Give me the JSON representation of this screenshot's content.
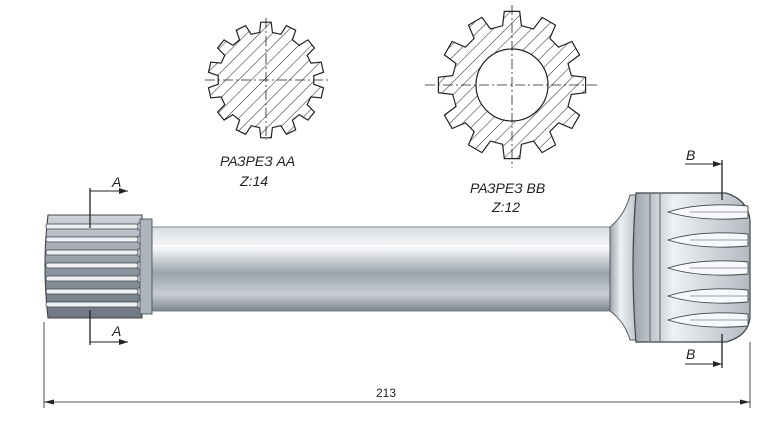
{
  "section_aa": {
    "title": "РАЗРЕЗ АА",
    "teeth": "Z:14"
  },
  "section_bb": {
    "title": "РАЗРЕЗ ВВ",
    "teeth": "Z:12"
  },
  "cut_marks": {
    "a_top": "A",
    "a_bottom": "A",
    "b_top": "B",
    "b_bottom": "B"
  },
  "dimension": {
    "overall_length": "213"
  },
  "colors": {
    "line": "#222222",
    "steel_dark": "#6e7680",
    "steel_light": "#eef1f4",
    "hatch": "#333333"
  }
}
